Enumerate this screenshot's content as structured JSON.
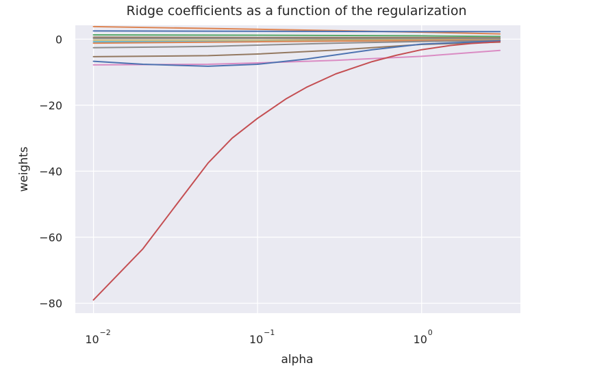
{
  "chart_data": {
    "type": "line",
    "title": "Ridge coefficients as a function of the regularization",
    "xlabel": "alpha",
    "ylabel": "weights",
    "xscale": "log",
    "xlim": [
      0.00775,
      4.0
    ],
    "ylim": [
      -83.0,
      4.2
    ],
    "grid": true,
    "background": "#EAEAF2",
    "gridColor": "#FFFFFF",
    "xticks": [
      {
        "value": 0.01,
        "base": "10",
        "exp": "−2"
      },
      {
        "value": 0.1,
        "base": "10",
        "exp": "−1"
      },
      {
        "value": 1,
        "base": "10",
        "exp": "0"
      }
    ],
    "yticks": [
      {
        "value": 0,
        "label": "0"
      },
      {
        "value": -20,
        "label": "−20"
      },
      {
        "value": -40,
        "label": "−40"
      },
      {
        "value": -60,
        "label": "−60"
      },
      {
        "value": -80,
        "label": "−80"
      }
    ],
    "series": [
      {
        "color": "#DD8452",
        "points": [
          [
            0.01,
            3.8
          ],
          [
            0.1,
            3.0
          ],
          [
            0.5,
            2.4
          ],
          [
            1,
            2.1
          ],
          [
            3,
            1.6
          ]
        ]
      },
      {
        "color": "#4C72B0",
        "points": [
          [
            0.01,
            2.5
          ],
          [
            0.1,
            2.4
          ],
          [
            1,
            2.3
          ],
          [
            3,
            2.3
          ]
        ]
      },
      {
        "color": "#55A868",
        "points": [
          [
            0.01,
            1.3
          ],
          [
            0.1,
            1.2
          ],
          [
            1,
            1.0
          ],
          [
            3,
            0.8
          ]
        ]
      },
      {
        "color": "#937860",
        "points": [
          [
            0.01,
            0.6
          ],
          [
            0.1,
            0.5
          ],
          [
            1,
            0.5
          ],
          [
            3,
            0.4
          ]
        ]
      },
      {
        "color": "#8C8C8C",
        "points": [
          [
            0.01,
            0.2
          ],
          [
            0.1,
            0.2
          ],
          [
            1,
            0.1
          ],
          [
            3,
            0.1
          ]
        ]
      },
      {
        "color": "#CCB974",
        "points": [
          [
            0.01,
            -0.3
          ],
          [
            0.1,
            -0.3
          ],
          [
            1,
            -0.2
          ],
          [
            3,
            -0.2
          ]
        ]
      },
      {
        "color": "#64B5CD",
        "points": [
          [
            0.01,
            -0.8
          ],
          [
            0.1,
            -0.7
          ],
          [
            1,
            -0.4
          ],
          [
            3,
            -0.3
          ]
        ]
      },
      {
        "color": "#DD8452",
        "points": [
          [
            0.01,
            -1.2
          ],
          [
            0.1,
            -0.8
          ],
          [
            0.5,
            -0.5
          ],
          [
            1,
            -0.4
          ],
          [
            3,
            -0.3
          ]
        ]
      },
      {
        "color": "#8C8C8C",
        "points": [
          [
            0.01,
            -2.6
          ],
          [
            0.05,
            -2.2
          ],
          [
            0.1,
            -1.8
          ],
          [
            0.3,
            -1.2
          ],
          [
            1,
            -0.7
          ],
          [
            3,
            -0.4
          ]
        ]
      },
      {
        "color": "#937860",
        "points": [
          [
            0.01,
            -5.3
          ],
          [
            0.05,
            -5.0
          ],
          [
            0.1,
            -4.5
          ],
          [
            0.3,
            -3.3
          ],
          [
            1,
            -1.6
          ],
          [
            3,
            -0.9
          ]
        ]
      },
      {
        "color": "#DA8BC3",
        "points": [
          [
            0.01,
            -7.8
          ],
          [
            0.05,
            -7.6
          ],
          [
            0.1,
            -7.2
          ],
          [
            0.3,
            -6.4
          ],
          [
            1,
            -5.2
          ],
          [
            3,
            -3.4
          ]
        ]
      },
      {
        "color": "#4C72B0",
        "points": [
          [
            0.01,
            -6.7
          ],
          [
            0.02,
            -7.6
          ],
          [
            0.05,
            -8.2
          ],
          [
            0.1,
            -7.6
          ],
          [
            0.2,
            -6.0
          ],
          [
            0.5,
            -3.2
          ],
          [
            1,
            -1.5
          ],
          [
            3,
            -0.5
          ]
        ]
      },
      {
        "color": "#C44E52",
        "points": [
          [
            0.01,
            -79.0
          ],
          [
            0.02,
            -63.5
          ],
          [
            0.03,
            -52.0
          ],
          [
            0.05,
            -37.5
          ],
          [
            0.07,
            -30.0
          ],
          [
            0.1,
            -24.0
          ],
          [
            0.15,
            -18.0
          ],
          [
            0.2,
            -14.5
          ],
          [
            0.3,
            -10.5
          ],
          [
            0.5,
            -6.8
          ],
          [
            0.7,
            -4.9
          ],
          [
            1,
            -3.2
          ],
          [
            1.5,
            -1.9
          ],
          [
            2,
            -1.3
          ],
          [
            3,
            -0.8
          ]
        ]
      }
    ]
  }
}
